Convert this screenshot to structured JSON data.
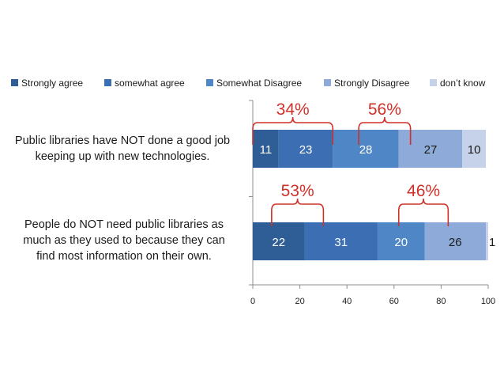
{
  "chart_data": {
    "type": "bar",
    "orientation": "horizontal",
    "stacked": true,
    "title": "",
    "xlabel": "",
    "ylabel": "",
    "xlim": [
      0,
      100
    ],
    "xticks": [
      0,
      20,
      40,
      60,
      80,
      100
    ],
    "legend_position": "top",
    "categories": [
      {
        "lines": [
          "Public libraries have NOT done a good job",
          "keeping up with new technologies."
        ]
      },
      {
        "lines": [
          "People do NOT need public libraries as",
          "much as they used to because they can",
          "find most information on their own."
        ]
      }
    ],
    "series": [
      {
        "name": "Strongly agree",
        "color": "#2f5d96",
        "values": [
          11,
          22
        ]
      },
      {
        "name": "somewhat agree",
        "color": "#3b6eb2",
        "values": [
          23,
          31
        ]
      },
      {
        "name": "Somewhat Disagree",
        "color": "#4f86c6",
        "values": [
          28,
          20
        ]
      },
      {
        "name": "Strongly  Disagree",
        "color": "#8eaad8",
        "values": [
          27,
          26
        ]
      },
      {
        "name": "don’t know",
        "color": "#c5d2ea",
        "values": [
          10,
          1
        ]
      }
    ],
    "label_colors": [
      "#ffffff",
      "#ffffff",
      "#ffffff",
      "#1a1a1a",
      "#1a1a1a"
    ],
    "annotations": [
      {
        "row": 0,
        "text": "34%",
        "from": 0,
        "to": 34,
        "color": "#d0302a"
      },
      {
        "row": 0,
        "text": "56%",
        "from": 45,
        "to": 67,
        "color": "#d0302a"
      },
      {
        "row": 1,
        "text": "53%",
        "from": 8,
        "to": 30,
        "color": "#d0302a"
      },
      {
        "row": 1,
        "text": "46%",
        "from": 62,
        "to": 83,
        "color": "#d0302a"
      }
    ]
  }
}
